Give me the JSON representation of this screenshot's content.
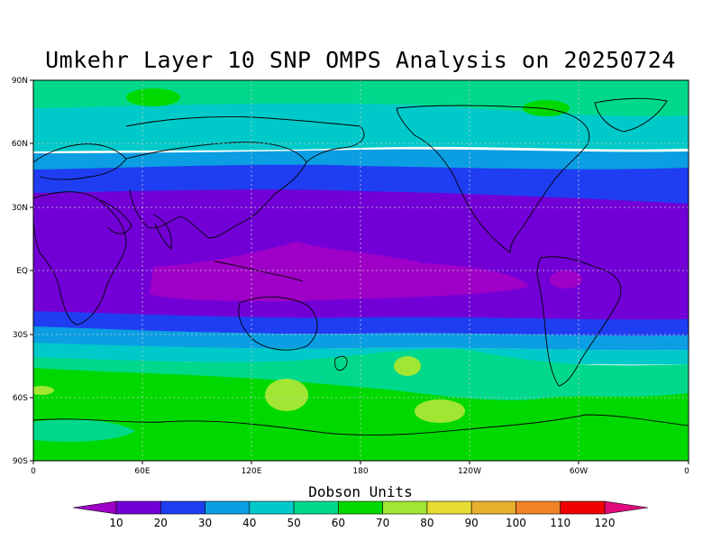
{
  "title": "Umkehr Layer 10 SNP OMPS Analysis on 20250724",
  "map": {
    "lat_ticks": [
      "90N",
      "60N",
      "30N",
      "EQ",
      "30S",
      "60S",
      "90S"
    ],
    "lon_ticks": [
      "0",
      "60E",
      "120E",
      "180",
      "120W",
      "60W",
      "0"
    ]
  },
  "colorbar": {
    "title": "Dobson Units",
    "tick_labels": [
      "10",
      "20",
      "30",
      "40",
      "50",
      "60",
      "70",
      "80",
      "90",
      "100",
      "110",
      "120"
    ],
    "colors": [
      "#9f00c7",
      "#7200d6",
      "#1f3ef2",
      "#0b9ee3",
      "#00c9c9",
      "#00d98b",
      "#00d900",
      "#a1e633",
      "#e6dc32",
      "#e6af2d",
      "#f08228",
      "#f00000",
      "#df0a7c"
    ]
  }
}
